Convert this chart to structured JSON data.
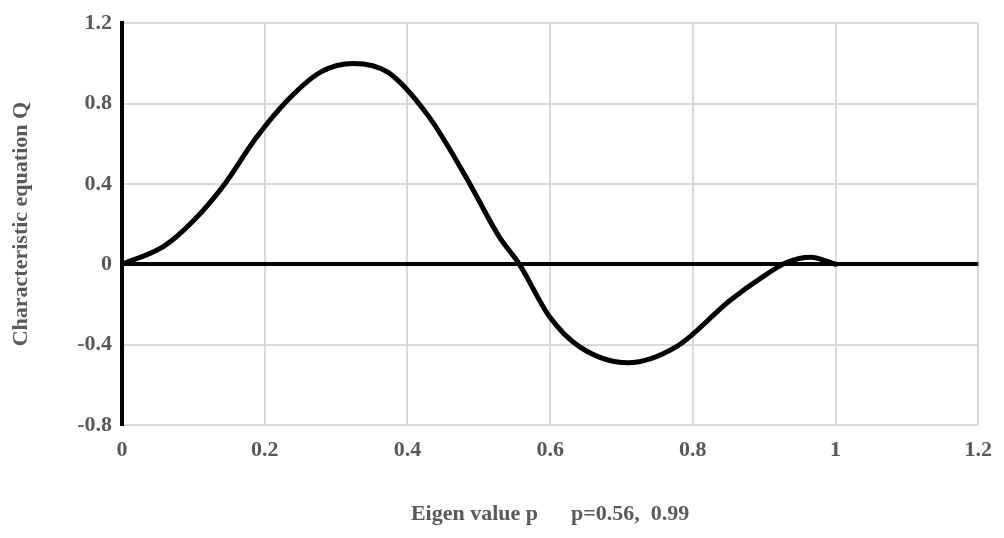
{
  "chart_data": {
    "type": "line",
    "xlabel": "Eigen value p      p=0.56,  0.99",
    "ylabel": "Characteristic equation Q",
    "xlim": [
      0,
      1.2
    ],
    "xticks": [
      0,
      0.2,
      0.4,
      0.6,
      0.8,
      1,
      1.2
    ],
    "ylim": [
      -0.8,
      1.2
    ],
    "yticks": [
      -0.8,
      -0.4,
      0,
      0.4,
      0.8,
      1.2
    ],
    "grid": true,
    "legend": false,
    "marker": "none",
    "line_style": "solid",
    "series": [
      {
        "color": "#000000",
        "x": [
          0,
          0.059,
          0.101,
          0.144,
          0.186,
          0.233,
          0.28,
          0.324,
          0.373,
          0.43,
          0.482,
          0.529,
          0.557,
          0.599,
          0.641,
          0.709,
          0.777,
          0.852,
          0.899,
          0.932,
          0.965,
          1
        ],
        "values": [
          0,
          0.09,
          0.22,
          0.4,
          0.62,
          0.82,
          0.96,
          1.0,
          0.955,
          0.735,
          0.435,
          0.135,
          0,
          -0.26,
          -0.41,
          -0.49,
          -0.41,
          -0.18,
          -0.06,
          0.01,
          0.035,
          0
        ]
      }
    ]
  }
}
